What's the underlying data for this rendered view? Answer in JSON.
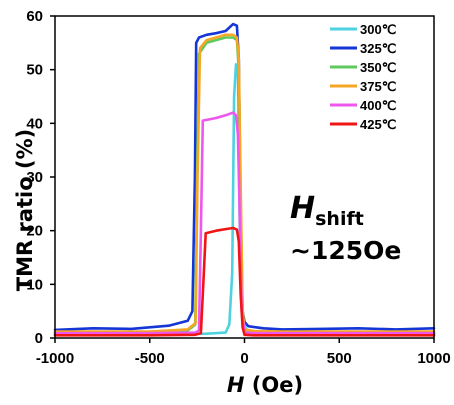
{
  "chart_data": {
    "type": "line",
    "xlabel_symbol": "H",
    "xlabel_unit": " (Oe)",
    "ylabel": "TMR ratio (%)",
    "xlim": [
      -1000,
      1000
    ],
    "ylim": [
      0,
      60
    ],
    "xticks": [
      -1000,
      -500,
      0,
      500,
      1000
    ],
    "xtick_labels": [
      "-1000",
      "-500",
      "0",
      "500",
      "1000"
    ],
    "yticks": [
      0,
      10,
      20,
      30,
      40,
      50,
      60
    ],
    "ytick_labels": [
      "0",
      "10",
      "20",
      "30",
      "40",
      "50",
      "60"
    ],
    "legend_position": "top-right",
    "annotation": {
      "symbol": "H",
      "subscript": "shift",
      "value": "~125Oe"
    },
    "series": [
      {
        "name": "300℃",
        "color": "#4fd2e0",
        "x": [
          -1000,
          -500,
          -200,
          -100,
          -80,
          -65,
          -55,
          -45,
          -35,
          -25,
          -10,
          20,
          100,
          500,
          1000
        ],
        "y": [
          0.6,
          0.6,
          0.8,
          1.0,
          2.5,
          12,
          45,
          51,
          50,
          20,
          3,
          1,
          0.7,
          0.6,
          0.6
        ]
      },
      {
        "name": "325℃",
        "color": "#1536d6",
        "x": [
          -1000,
          -800,
          -600,
          -400,
          -300,
          -275,
          -262,
          -255,
          -240,
          -200,
          -150,
          -100,
          -60,
          -40,
          -30,
          -20,
          -10,
          0,
          20,
          60,
          100,
          200,
          400,
          600,
          800,
          1000
        ],
        "y": [
          1.5,
          1.8,
          1.7,
          2.3,
          3.2,
          5.0,
          30,
          55,
          56,
          56.5,
          56.8,
          57.2,
          58.5,
          58.2,
          52,
          20,
          5,
          3.0,
          2.2,
          2.0,
          1.8,
          1.6,
          1.7,
          1.8,
          1.6,
          1.8
        ]
      },
      {
        "name": "350℃",
        "color": "#5fc95f",
        "x": [
          -1000,
          -500,
          -300,
          -260,
          -250,
          -240,
          -200,
          -150,
          -100,
          -60,
          -40,
          -30,
          -20,
          -10,
          0,
          50,
          200,
          500,
          1000
        ],
        "y": [
          1.0,
          1.0,
          1.4,
          2.5,
          30,
          53,
          55,
          55.5,
          56,
          56,
          55.5,
          50,
          25,
          5,
          1.5,
          1.2,
          1.1,
          1.0,
          1.0
        ]
      },
      {
        "name": "375℃",
        "color": "#f5a623",
        "x": [
          -1000,
          -500,
          -300,
          -258,
          -248,
          -235,
          -200,
          -150,
          -100,
          -60,
          -40,
          -30,
          -20,
          -10,
          0,
          50,
          200,
          500,
          1000
        ],
        "y": [
          1.2,
          1.2,
          1.6,
          2.8,
          30,
          54,
          55.5,
          56,
          56.5,
          56.5,
          56,
          52,
          28,
          5,
          1.6,
          1.3,
          1.2,
          1.2,
          1.2
        ]
      },
      {
        "name": "400℃",
        "color": "#ee57ee",
        "x": [
          -1000,
          -500,
          -260,
          -240,
          -230,
          -220,
          -150,
          -100,
          -60,
          -45,
          -35,
          -25,
          -15,
          0,
          50,
          200,
          500,
          1000
        ],
        "y": [
          0.9,
          0.9,
          1.0,
          1.4,
          20,
          40.5,
          41,
          41.5,
          42,
          41.5,
          38,
          22,
          5,
          1.0,
          0.9,
          0.9,
          0.9,
          0.9
        ]
      },
      {
        "name": "425℃",
        "color": "#f01515",
        "x": [
          -1000,
          -500,
          -260,
          -230,
          -215,
          -205,
          -150,
          -100,
          -60,
          -40,
          -30,
          -20,
          -10,
          0,
          50,
          200,
          500,
          1000
        ],
        "y": [
          0.5,
          0.5,
          0.6,
          0.9,
          12,
          19.5,
          20,
          20.3,
          20.5,
          20.2,
          18,
          8,
          2,
          0.6,
          0.5,
          0.5,
          0.5,
          0.5
        ]
      }
    ]
  }
}
